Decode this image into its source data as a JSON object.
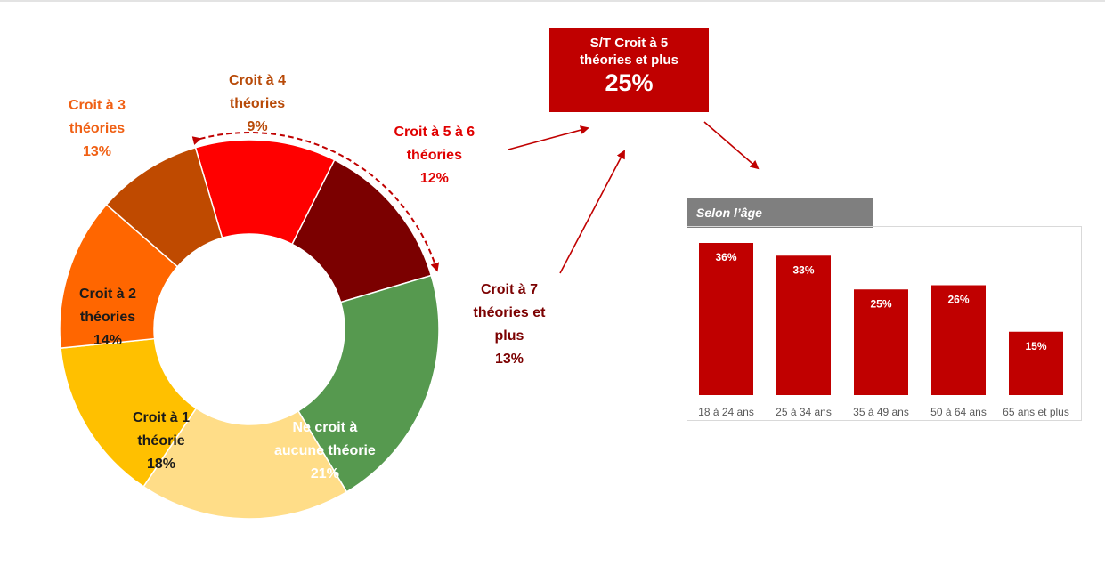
{
  "chart_data": [
    {
      "type": "pie",
      "slices": [
        {
          "label": [
            "Croit à 5 à 6",
            "théories"
          ],
          "value": 12,
          "display": "12%",
          "color": "#ff0000",
          "label_color": "#e00000"
        },
        {
          "label": [
            "Croit à 7",
            "théories et",
            "plus"
          ],
          "value": 13,
          "display": "13%",
          "color": "#7b0000",
          "label_color": "#7b0000"
        },
        {
          "label": [
            "Ne croit à",
            "aucune théorie"
          ],
          "value": 21,
          "display": "21%",
          "color": "#56994f",
          "label_color": "#ffffff"
        },
        {
          "label": [
            "Croit à 1",
            "théorie"
          ],
          "value": 18,
          "display": "18%",
          "color": "#ffdd88",
          "label_color": "#1a1a1a"
        },
        {
          "label": [
            "Croit à 2",
            "théories"
          ],
          "value": 14,
          "display": "14%",
          "color": "#ffc000",
          "label_color": "#1a1a1a"
        },
        {
          "label": [
            "Croit à 3",
            "théories"
          ],
          "value": 13,
          "display": "13%",
          "color": "#ff6600",
          "label_color": "#f06014"
        },
        {
          "label": [
            "Croit à 4",
            "théories"
          ],
          "value": 9,
          "display": "9%",
          "color": "#bf4a00",
          "label_color": "#b84a08"
        }
      ],
      "donut": true
    },
    {
      "type": "bar",
      "title": "Selon l’âge",
      "categories": [
        "18 à 24 ans",
        "25 à 34 ans",
        "35 à 49 ans",
        "50 à 64 ans",
        "65 ans et plus"
      ],
      "values": [
        36,
        33,
        25,
        26,
        15
      ],
      "value_labels": [
        "36%",
        "33%",
        "25%",
        "26%",
        "15%"
      ],
      "ylim": [
        0,
        40
      ],
      "bar_color": "#c00000"
    }
  ],
  "summary": {
    "line1": "S/T Croit à 5",
    "line2": "théories et plus",
    "value": "25%"
  },
  "colors": {
    "accent": "#c00000",
    "header_bg": "#7f7f7f",
    "arrow": "#c00000"
  }
}
